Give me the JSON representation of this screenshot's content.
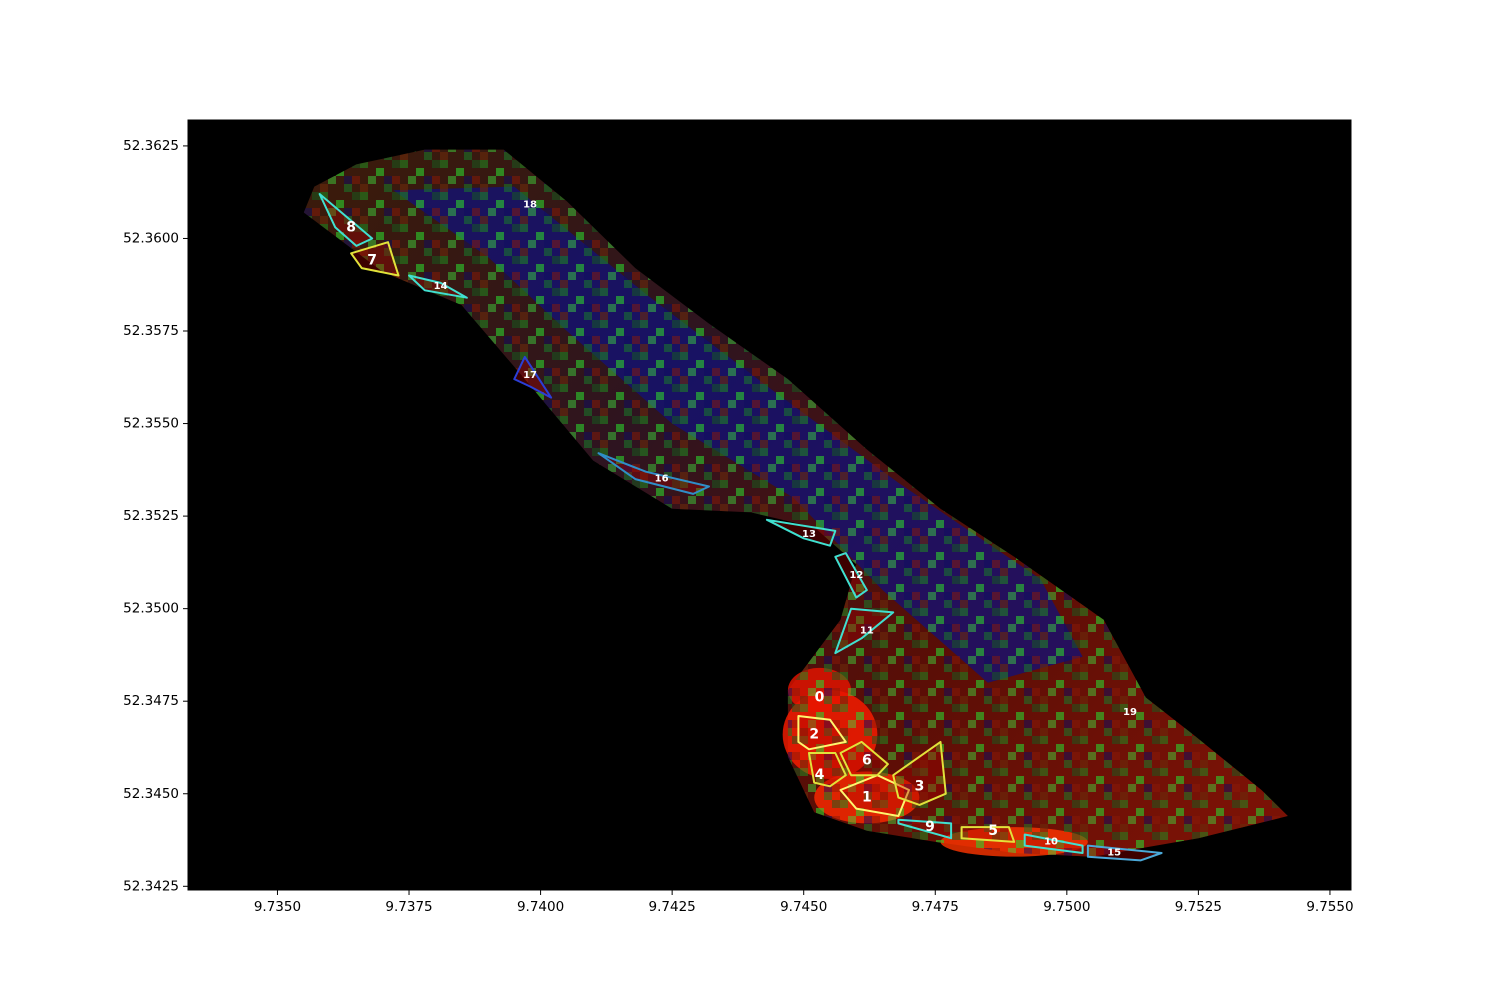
{
  "chart_data": {
    "type": "map",
    "title": "",
    "xlabel": "",
    "ylabel": "",
    "xlim": [
      9.7333,
      9.7554
    ],
    "ylim": [
      52.3424,
      52.3632
    ],
    "xticks": [
      {
        "value": 9.735,
        "label": "9.7350"
      },
      {
        "value": 9.7375,
        "label": "9.7375"
      },
      {
        "value": 9.74,
        "label": "9.7400"
      },
      {
        "value": 9.7425,
        "label": "9.7425"
      },
      {
        "value": 9.745,
        "label": "9.7450"
      },
      {
        "value": 9.7475,
        "label": "9.7475"
      },
      {
        "value": 9.75,
        "label": "9.7500"
      },
      {
        "value": 9.7525,
        "label": "9.7525"
      },
      {
        "value": 9.755,
        "label": "9.7550"
      }
    ],
    "yticks": [
      {
        "value": 52.3425,
        "label": "52.3425"
      },
      {
        "value": 52.345,
        "label": "52.3450"
      },
      {
        "value": 52.3475,
        "label": "52.3475"
      },
      {
        "value": 52.35,
        "label": "52.3500"
      },
      {
        "value": 52.3525,
        "label": "52.3525"
      },
      {
        "value": 52.355,
        "label": "52.3550"
      },
      {
        "value": 52.3575,
        "label": "52.3575"
      },
      {
        "value": 52.36,
        "label": "52.3600"
      },
      {
        "value": 52.3625,
        "label": "52.3625"
      }
    ],
    "background_color": "#000000",
    "field_outline": [
      [
        9.7357,
        52.3614
      ],
      [
        9.7365,
        52.362
      ],
      [
        9.7378,
        52.3624
      ],
      [
        9.7393,
        52.3624
      ],
      [
        9.7405,
        52.361
      ],
      [
        9.7418,
        52.3592
      ],
      [
        9.7432,
        52.3577
      ],
      [
        9.7447,
        52.3562
      ],
      [
        9.7462,
        52.3543
      ],
      [
        9.7476,
        52.3527
      ],
      [
        9.749,
        52.3514
      ],
      [
        9.7507,
        52.3497
      ],
      [
        9.7515,
        52.3476
      ],
      [
        9.7524,
        52.3466
      ],
      [
        9.7537,
        52.3451
      ],
      [
        9.7542,
        52.3444
      ],
      [
        9.7525,
        52.3438
      ],
      [
        9.7505,
        52.3433
      ],
      [
        9.749,
        52.3434
      ],
      [
        9.7475,
        52.3437
      ],
      [
        9.7462,
        52.344
      ],
      [
        9.7452,
        52.3445
      ],
      [
        9.7447,
        52.346
      ],
      [
        9.7447,
        52.3478
      ],
      [
        9.7457,
        52.3497
      ],
      [
        9.746,
        52.3512
      ],
      [
        9.7452,
        52.3522
      ],
      [
        9.744,
        52.3526
      ],
      [
        9.7425,
        52.3527
      ],
      [
        9.741,
        52.354
      ],
      [
        9.7397,
        52.3562
      ],
      [
        9.7385,
        52.3582
      ],
      [
        9.737,
        52.3591
      ],
      [
        9.7355,
        52.3607
      ]
    ],
    "blue_core": [
      [
        9.7372,
        52.3613
      ],
      [
        9.7395,
        52.3614
      ],
      [
        9.742,
        52.3585
      ],
      [
        9.7445,
        52.3558
      ],
      [
        9.7468,
        52.3534
      ],
      [
        9.7495,
        52.3508
      ],
      [
        9.7503,
        52.3487
      ],
      [
        9.7485,
        52.348
      ],
      [
        9.7465,
        52.3505
      ],
      [
        9.7448,
        52.353
      ],
      [
        9.7425,
        52.355
      ],
      [
        9.7405,
        52.3575
      ],
      [
        9.739,
        52.3595
      ]
    ],
    "hotspot_colors": [
      "#ff1d00",
      "#ff2a00",
      "#e81400",
      "#ff3500"
    ],
    "hotspots": [
      {
        "x": 9.7455,
        "y": 52.3466,
        "rx": 0.0009,
        "ry": 0.0012
      },
      {
        "x": 9.7462,
        "y": 52.3449,
        "rx": 0.001,
        "ry": 0.0007
      },
      {
        "x": 9.7453,
        "y": 52.3478,
        "rx": 0.0006,
        "ry": 0.0006
      },
      {
        "x": 9.749,
        "y": 52.3437,
        "rx": 0.0014,
        "ry": 0.0004
      }
    ],
    "zones": [
      {
        "label": "0",
        "color": "none",
        "points": [
          [
            9.745,
            52.3481
          ],
          [
            9.7458,
            52.3481
          ],
          [
            9.7458,
            52.3471
          ],
          [
            9.745,
            52.3472
          ]
        ],
        "label_x": 9.7453,
        "label_y": 52.3476
      },
      {
        "label": "1",
        "color": "#fff66e",
        "points": [
          [
            9.7457,
            52.3451
          ],
          [
            9.7464,
            52.3455
          ],
          [
            9.747,
            52.3451
          ],
          [
            9.7468,
            52.3444
          ],
          [
            9.746,
            52.3446
          ]
        ],
        "label_x": 9.7462,
        "label_y": 52.3449
      },
      {
        "label": "2",
        "color": "#fff66e",
        "points": [
          [
            9.7449,
            52.3471
          ],
          [
            9.7455,
            52.347
          ],
          [
            9.7458,
            52.3464
          ],
          [
            9.7451,
            52.3462
          ],
          [
            9.7449,
            52.3464
          ]
        ],
        "label_x": 9.7452,
        "label_y": 52.3466
      },
      {
        "label": "3",
        "color": "#e2e23a",
        "points": [
          [
            9.7467,
            52.3455
          ],
          [
            9.7476,
            52.3464
          ],
          [
            9.7477,
            52.345
          ],
          [
            9.7472,
            52.3447
          ],
          [
            9.7468,
            52.3449
          ]
        ],
        "label_x": 9.7472,
        "label_y": 52.3452
      },
      {
        "label": "4",
        "color": "#e2e23a",
        "points": [
          [
            9.7451,
            52.3461
          ],
          [
            9.7456,
            52.3461
          ],
          [
            9.7458,
            52.3455
          ],
          [
            9.7455,
            52.3452
          ],
          [
            9.7452,
            52.3453
          ]
        ],
        "label_x": 9.7453,
        "label_y": 52.3455
      },
      {
        "label": "5",
        "color": "#e2e23a",
        "points": [
          [
            9.748,
            52.3441
          ],
          [
            9.7489,
            52.3441
          ],
          [
            9.749,
            52.3437
          ],
          [
            9.748,
            52.3438
          ]
        ],
        "label_x": 9.7486,
        "label_y": 52.344
      },
      {
        "label": "6",
        "color": "#e2e23a",
        "points": [
          [
            9.7457,
            52.3461
          ],
          [
            9.7461,
            52.3464
          ],
          [
            9.7466,
            52.3458
          ],
          [
            9.7464,
            52.3455
          ],
          [
            9.7459,
            52.3455
          ]
        ],
        "label_x": 9.7462,
        "label_y": 52.3459
      },
      {
        "label": "7",
        "color": "#e2e23a",
        "points": [
          [
            9.7364,
            52.3596
          ],
          [
            9.7371,
            52.3599
          ],
          [
            9.7373,
            52.359
          ],
          [
            9.7366,
            52.3592
          ]
        ],
        "label_x": 9.7368,
        "label_y": 52.3594
      },
      {
        "label": "8",
        "color": "#40e0d0",
        "points": [
          [
            9.7358,
            52.3612
          ],
          [
            9.7368,
            52.36
          ],
          [
            9.7365,
            52.3598
          ],
          [
            9.7361,
            52.3603
          ]
        ],
        "label_x": 9.7364,
        "label_y": 52.3603
      },
      {
        "label": "9",
        "color": "#40e0d0",
        "points": [
          [
            9.7468,
            52.3443
          ],
          [
            9.7478,
            52.3442
          ],
          [
            9.7478,
            52.3438
          ],
          [
            9.7468,
            52.3442
          ]
        ],
        "label_x": 9.7474,
        "label_y": 52.3441
      },
      {
        "label": "10",
        "color": "#40e0d0",
        "points": [
          [
            9.7492,
            52.3439
          ],
          [
            9.7503,
            52.3436
          ],
          [
            9.7503,
            52.3434
          ],
          [
            9.7492,
            52.3436
          ]
        ],
        "label_x": 9.7497,
        "label_y": 52.3437
      },
      {
        "label": "11",
        "color": "#40e0d0",
        "points": [
          [
            9.7459,
            52.35
          ],
          [
            9.7467,
            52.3499
          ],
          [
            9.7461,
            52.3492
          ],
          [
            9.7456,
            52.3488
          ]
        ],
        "label_x": 9.7462,
        "label_y": 52.3494
      },
      {
        "label": "12",
        "color": "#40e0d0",
        "points": [
          [
            9.7456,
            52.3514
          ],
          [
            9.7458,
            52.3515
          ],
          [
            9.7462,
            52.3505
          ],
          [
            9.746,
            52.3503
          ]
        ],
        "label_x": 9.746,
        "label_y": 52.3509
      },
      {
        "label": "13",
        "color": "#40e0d0",
        "points": [
          [
            9.7443,
            52.3524
          ],
          [
            9.7456,
            52.3521
          ],
          [
            9.7455,
            52.3517
          ],
          [
            9.745,
            52.3519
          ]
        ],
        "label_x": 9.7451,
        "label_y": 52.352
      },
      {
        "label": "14",
        "color": "#40e0d0",
        "points": [
          [
            9.7375,
            52.359
          ],
          [
            9.7381,
            52.3588
          ],
          [
            9.7386,
            52.3584
          ],
          [
            9.7378,
            52.3586
          ]
        ],
        "label_x": 9.7381,
        "label_y": 52.3587
      },
      {
        "label": "15",
        "color": "#4aa8d8",
        "points": [
          [
            9.7504,
            52.3436
          ],
          [
            9.7518,
            52.3434
          ],
          [
            9.7514,
            52.3432
          ],
          [
            9.7504,
            52.3433
          ]
        ],
        "label_x": 9.7509,
        "label_y": 52.3434
      },
      {
        "label": "16",
        "color": "#2f8ec8",
        "points": [
          [
            9.7411,
            52.3542
          ],
          [
            9.742,
            52.3537
          ],
          [
            9.7432,
            52.3533
          ],
          [
            9.7429,
            52.3531
          ],
          [
            9.7418,
            52.3535
          ]
        ],
        "label_x": 9.7423,
        "label_y": 52.3535
      },
      {
        "label": "17",
        "color": "#2b3fd6",
        "points": [
          [
            9.7397,
            52.3568
          ],
          [
            9.7402,
            52.3557
          ],
          [
            9.7398,
            52.356
          ],
          [
            9.7395,
            52.3562
          ]
        ],
        "label_x": 9.7398,
        "label_y": 52.3563
      },
      {
        "label": "18",
        "color": "none",
        "points": [],
        "label_x": 9.7398,
        "label_y": 52.3609
      },
      {
        "label": "19",
        "color": "none",
        "points": [],
        "label_x": 9.7512,
        "label_y": 52.3472
      }
    ]
  }
}
